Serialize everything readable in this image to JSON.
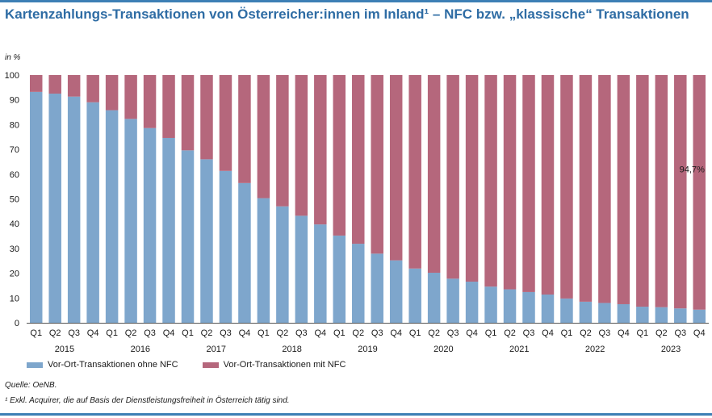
{
  "title": "Kartenzahlungs-Transaktionen von Österreicher:innen im Inland¹ – NFC bzw. „klassische“ Transaktionen",
  "unit_label": "in %",
  "source": "Quelle: OeNB.",
  "footnote": "¹ Exkl. Acquirer, die auf Basis der Dienstleistungsfreiheit in Österreich tätig sind.",
  "colors": {
    "title": "#2e6ca4",
    "without_nfc": "#7ea6cc",
    "with_nfc": "#b5677c",
    "rule": "#3d7fb5"
  },
  "chart_data": {
    "type": "bar",
    "stacked": true,
    "ylim": [
      0,
      100
    ],
    "yticks": [
      0,
      10,
      20,
      30,
      40,
      50,
      60,
      70,
      80,
      90,
      100
    ],
    "quarters": [
      "Q1",
      "Q2",
      "Q3",
      "Q4",
      "Q1",
      "Q2",
      "Q3",
      "Q4",
      "Q1",
      "Q2",
      "Q3",
      "Q4",
      "Q1",
      "Q2",
      "Q3",
      "Q4",
      "Q1",
      "Q2",
      "Q3",
      "Q4",
      "Q1",
      "Q2",
      "Q3",
      "Q4",
      "Q1",
      "Q2",
      "Q3",
      "Q4",
      "Q1",
      "Q2",
      "Q3",
      "Q4",
      "Q1",
      "Q2",
      "Q3",
      "Q4"
    ],
    "years": [
      "2015",
      "2016",
      "2017",
      "2018",
      "2019",
      "2020",
      "2021",
      "2022",
      "2023"
    ],
    "series": [
      {
        "name": "Vor-Ort-Transaktionen ohne NFC",
        "values": [
          93.2,
          92.5,
          91.3,
          89,
          85.8,
          82.3,
          78.6,
          74.6,
          69.6,
          66,
          61.3,
          56.4,
          50.3,
          47,
          43.2,
          39.7,
          35.2,
          31.9,
          27.9,
          25.2,
          21.9,
          20.2,
          17.8,
          16.6,
          14.6,
          13.5,
          12.4,
          11.4,
          9.8,
          8.5,
          8,
          7.5,
          6.5,
          6.3,
          5.8,
          5.3
        ]
      },
      {
        "name": "Vor-Ort-Transaktionen mit NFC",
        "values": [
          6.8,
          7.5,
          8.7,
          11,
          14.2,
          17.7,
          21.4,
          25.4,
          30.4,
          34,
          38.7,
          43.6,
          49.7,
          53,
          56.8,
          60.3,
          64.8,
          68.1,
          72.1,
          74.8,
          78.1,
          79.8,
          82.2,
          83.4,
          85.4,
          86.5,
          87.6,
          88.6,
          90.2,
          91.5,
          92,
          92.5,
          93.5,
          93.7,
          94.2,
          94.7
        ]
      }
    ],
    "annotation": "94,7%"
  }
}
